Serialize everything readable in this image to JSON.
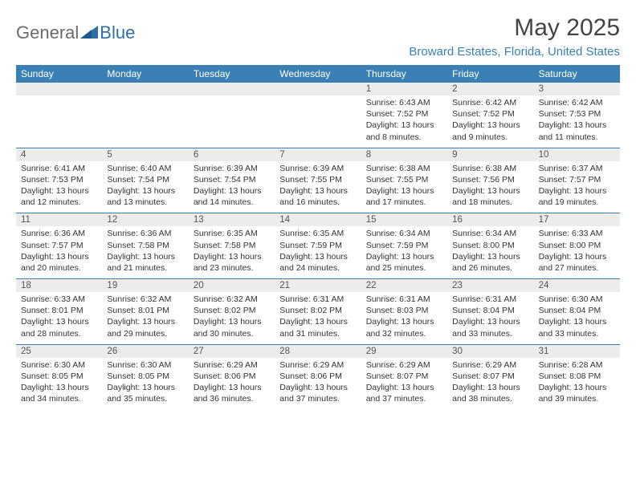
{
  "brand": {
    "part1": "General",
    "part2": "Blue"
  },
  "title": "May 2025",
  "location": "Broward Estates, Florida, United States",
  "colors": {
    "header_bg": "#3a80b5",
    "header_text": "#ffffff",
    "num_bg": "#ececec",
    "border": "#3a80b5",
    "location_text": "#3a80b5",
    "body_text": "#333333",
    "logo_grey": "#6b6b6b",
    "logo_blue": "#2f6fa8"
  },
  "day_names": [
    "Sunday",
    "Monday",
    "Tuesday",
    "Wednesday",
    "Thursday",
    "Friday",
    "Saturday"
  ],
  "weeks": [
    {
      "nums": [
        "",
        "",
        "",
        "",
        "1",
        "2",
        "3"
      ],
      "cells": [
        null,
        null,
        null,
        null,
        {
          "sunrise": "6:43 AM",
          "sunset": "7:52 PM",
          "daylight": "13 hours and 8 minutes."
        },
        {
          "sunrise": "6:42 AM",
          "sunset": "7:52 PM",
          "daylight": "13 hours and 9 minutes."
        },
        {
          "sunrise": "6:42 AM",
          "sunset": "7:53 PM",
          "daylight": "13 hours and 11 minutes."
        }
      ]
    },
    {
      "nums": [
        "4",
        "5",
        "6",
        "7",
        "8",
        "9",
        "10"
      ],
      "cells": [
        {
          "sunrise": "6:41 AM",
          "sunset": "7:53 PM",
          "daylight": "13 hours and 12 minutes."
        },
        {
          "sunrise": "6:40 AM",
          "sunset": "7:54 PM",
          "daylight": "13 hours and 13 minutes."
        },
        {
          "sunrise": "6:39 AM",
          "sunset": "7:54 PM",
          "daylight": "13 hours and 14 minutes."
        },
        {
          "sunrise": "6:39 AM",
          "sunset": "7:55 PM",
          "daylight": "13 hours and 16 minutes."
        },
        {
          "sunrise": "6:38 AM",
          "sunset": "7:55 PM",
          "daylight": "13 hours and 17 minutes."
        },
        {
          "sunrise": "6:38 AM",
          "sunset": "7:56 PM",
          "daylight": "13 hours and 18 minutes."
        },
        {
          "sunrise": "6:37 AM",
          "sunset": "7:57 PM",
          "daylight": "13 hours and 19 minutes."
        }
      ]
    },
    {
      "nums": [
        "11",
        "12",
        "13",
        "14",
        "15",
        "16",
        "17"
      ],
      "cells": [
        {
          "sunrise": "6:36 AM",
          "sunset": "7:57 PM",
          "daylight": "13 hours and 20 minutes."
        },
        {
          "sunrise": "6:36 AM",
          "sunset": "7:58 PM",
          "daylight": "13 hours and 21 minutes."
        },
        {
          "sunrise": "6:35 AM",
          "sunset": "7:58 PM",
          "daylight": "13 hours and 23 minutes."
        },
        {
          "sunrise": "6:35 AM",
          "sunset": "7:59 PM",
          "daylight": "13 hours and 24 minutes."
        },
        {
          "sunrise": "6:34 AM",
          "sunset": "7:59 PM",
          "daylight": "13 hours and 25 minutes."
        },
        {
          "sunrise": "6:34 AM",
          "sunset": "8:00 PM",
          "daylight": "13 hours and 26 minutes."
        },
        {
          "sunrise": "6:33 AM",
          "sunset": "8:00 PM",
          "daylight": "13 hours and 27 minutes."
        }
      ]
    },
    {
      "nums": [
        "18",
        "19",
        "20",
        "21",
        "22",
        "23",
        "24"
      ],
      "cells": [
        {
          "sunrise": "6:33 AM",
          "sunset": "8:01 PM",
          "daylight": "13 hours and 28 minutes."
        },
        {
          "sunrise": "6:32 AM",
          "sunset": "8:01 PM",
          "daylight": "13 hours and 29 minutes."
        },
        {
          "sunrise": "6:32 AM",
          "sunset": "8:02 PM",
          "daylight": "13 hours and 30 minutes."
        },
        {
          "sunrise": "6:31 AM",
          "sunset": "8:02 PM",
          "daylight": "13 hours and 31 minutes."
        },
        {
          "sunrise": "6:31 AM",
          "sunset": "8:03 PM",
          "daylight": "13 hours and 32 minutes."
        },
        {
          "sunrise": "6:31 AM",
          "sunset": "8:04 PM",
          "daylight": "13 hours and 33 minutes."
        },
        {
          "sunrise": "6:30 AM",
          "sunset": "8:04 PM",
          "daylight": "13 hours and 33 minutes."
        }
      ]
    },
    {
      "nums": [
        "25",
        "26",
        "27",
        "28",
        "29",
        "30",
        "31"
      ],
      "cells": [
        {
          "sunrise": "6:30 AM",
          "sunset": "8:05 PM",
          "daylight": "13 hours and 34 minutes."
        },
        {
          "sunrise": "6:30 AM",
          "sunset": "8:05 PM",
          "daylight": "13 hours and 35 minutes."
        },
        {
          "sunrise": "6:29 AM",
          "sunset": "8:06 PM",
          "daylight": "13 hours and 36 minutes."
        },
        {
          "sunrise": "6:29 AM",
          "sunset": "8:06 PM",
          "daylight": "13 hours and 37 minutes."
        },
        {
          "sunrise": "6:29 AM",
          "sunset": "8:07 PM",
          "daylight": "13 hours and 37 minutes."
        },
        {
          "sunrise": "6:29 AM",
          "sunset": "8:07 PM",
          "daylight": "13 hours and 38 minutes."
        },
        {
          "sunrise": "6:28 AM",
          "sunset": "8:08 PM",
          "daylight": "13 hours and 39 minutes."
        }
      ]
    }
  ],
  "labels": {
    "sunrise": "Sunrise:",
    "sunset": "Sunset:",
    "daylight": "Daylight:"
  }
}
